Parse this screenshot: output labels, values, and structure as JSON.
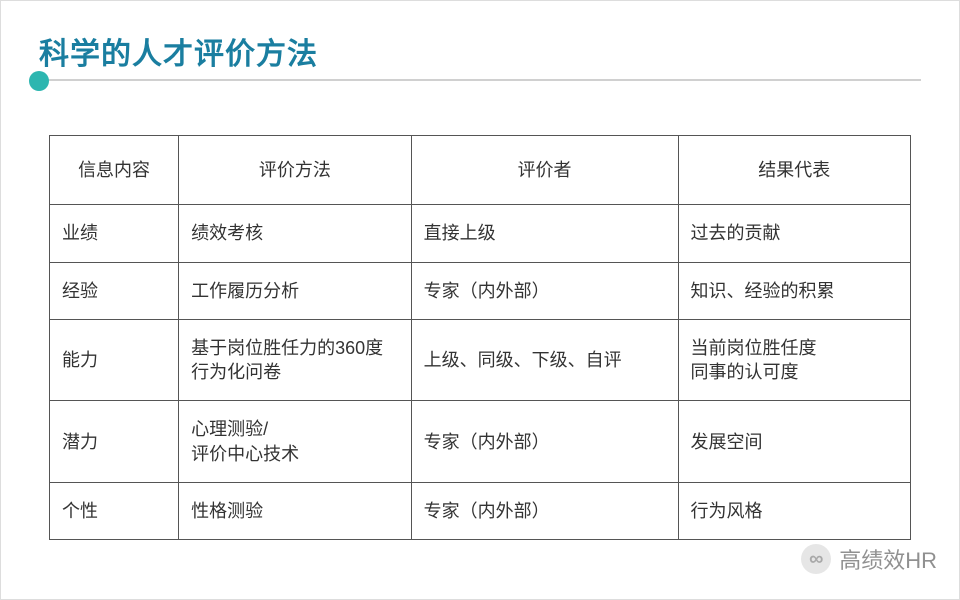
{
  "title": "科学的人才评价方法",
  "colors": {
    "title": "#1a7ea0",
    "accent": "#2db6b0",
    "border": "#555555",
    "text": "#333333",
    "rule": "#d0d0d0"
  },
  "table": {
    "columns": [
      "信息内容",
      "评价方法",
      "评价者",
      "结果代表"
    ],
    "column_widths_pct": [
      15,
      27,
      31,
      27
    ],
    "header_align": "center",
    "body_align": "left",
    "font_size_pt": 14,
    "rows": [
      [
        "业绩",
        "绩效考核",
        "直接上级",
        "过去的贡献"
      ],
      [
        "经验",
        "工作履历分析",
        "专家（内外部）",
        "知识、经验的积累"
      ],
      [
        "能力",
        "基于岗位胜任力的360度行为化问卷",
        "上级、同级、下级、自评",
        "当前岗位胜任度\n同事的认可度"
      ],
      [
        "潜力",
        "心理测验/\n评价中心技术",
        "专家（内外部）",
        "发展空间"
      ],
      [
        "个性",
        "性格测验",
        "专家（内外部）",
        "行为风格"
      ]
    ]
  },
  "watermark": {
    "icon_glyph": "∞",
    "text": "高绩效HR"
  }
}
